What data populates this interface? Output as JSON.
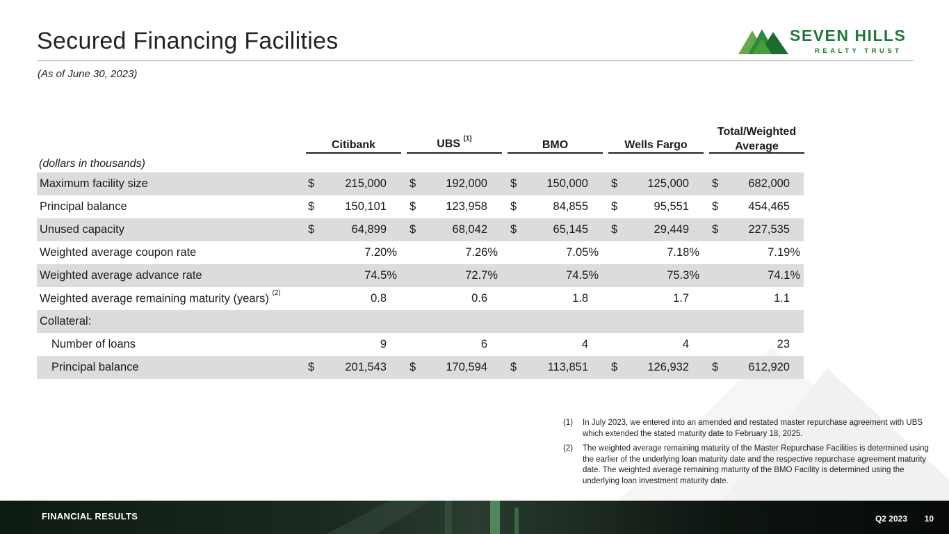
{
  "header": {
    "title": "Secured Financing Facilities",
    "subtitle": "(As of June 30, 2023)"
  },
  "logo": {
    "line1": "SEVEN HILLS",
    "line2": "REALTY TRUST",
    "color": "#1e7a3a"
  },
  "table": {
    "columns": [
      {
        "label": "Citibank",
        "sup": ""
      },
      {
        "label": "UBS",
        "sup": "(1)"
      },
      {
        "label": "BMO",
        "sup": ""
      },
      {
        "label": "Wells Fargo",
        "sup": ""
      },
      {
        "label_line1": "Total/Weighted",
        "label_line2": "Average"
      }
    ],
    "units_note": "(dollars in thousands)",
    "rows": [
      {
        "label": "Maximum facility size",
        "currency": "$",
        "values": [
          "215,000",
          "192,000",
          "150,000",
          "125,000",
          "682,000"
        ]
      },
      {
        "label": "Principal balance",
        "currency": "$",
        "values": [
          "150,101",
          "123,958",
          "84,855",
          "95,551",
          "454,465"
        ]
      },
      {
        "label": "Unused capacity",
        "currency": "$",
        "values": [
          "64,899",
          "68,042",
          "65,145",
          "29,449",
          "227,535"
        ]
      },
      {
        "label": "Weighted average coupon rate",
        "values": [
          "7.20%",
          "7.26%",
          "7.05%",
          "7.18%",
          "7.19%"
        ]
      },
      {
        "label": "Weighted average advance rate",
        "values": [
          "74.5%",
          "72.7%",
          "74.5%",
          "75.3%",
          "74.1%"
        ]
      },
      {
        "label": "Weighted average remaining maturity (years)",
        "sup": "(2)",
        "values": [
          "0.8",
          "0.6",
          "1.8",
          "1.7",
          "1.1"
        ]
      },
      {
        "label": "Collateral:"
      },
      {
        "label": "Number of loans",
        "values": [
          "9",
          "6",
          "4",
          "4",
          "23"
        ]
      },
      {
        "label": "Principal balance",
        "currency": "$",
        "values": [
          "201,543",
          "170,594",
          "113,851",
          "126,932",
          "612,920"
        ]
      }
    ]
  },
  "footnotes": [
    {
      "num": "(1)",
      "text": "In July 2023, we entered into an amended and restated master repurchase agreement with UBS which extended the stated maturity date to February 18, 2025."
    },
    {
      "num": "(2)",
      "text": "The weighted average remaining maturity of the Master Repurchase Facilities is determined using the earlier of the underlying loan maturity date and the respective repurchase agreement maturity date. The weighted average remaining maturity of the BMO Facility is determined using the underlying loan investment maturity date."
    }
  ],
  "footer": {
    "section": "FINANCIAL RESULTS",
    "period": "Q2 2023",
    "page": "10"
  }
}
